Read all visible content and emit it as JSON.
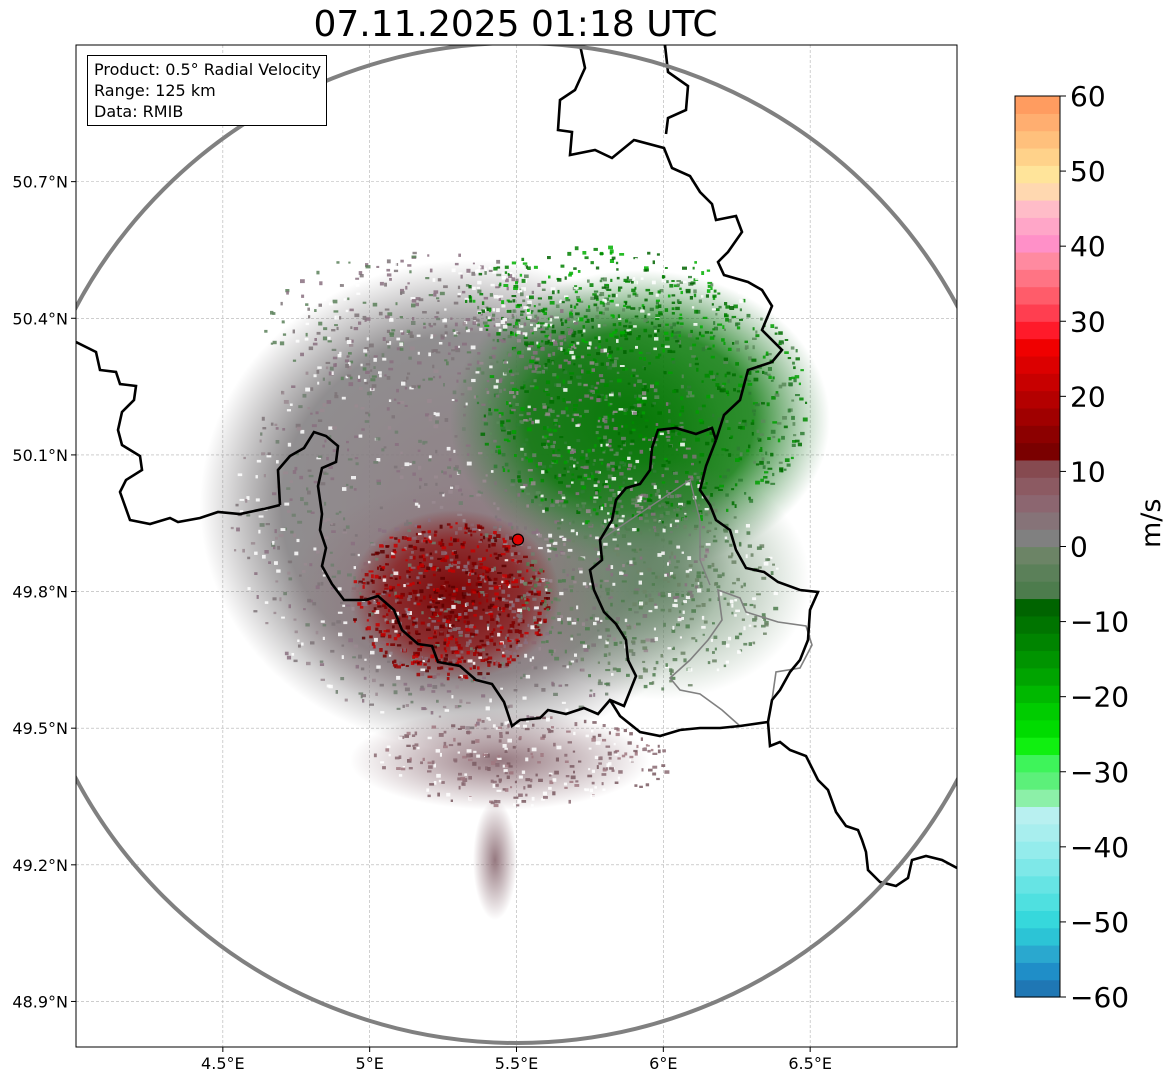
{
  "title": "07.11.2025 01:18 UTC",
  "info": {
    "product": "Product: 0.5° Radial Velocity",
    "range": "Range: 125 km",
    "source": "Data: RMIB"
  },
  "axes": {
    "x_ticks": [
      "4.5°E",
      "5°E",
      "5.5°E",
      "6°E",
      "6.5°E"
    ],
    "x_tick_values": [
      4.5,
      5.0,
      5.5,
      6.0,
      6.5
    ],
    "y_ticks": [
      "50.7°N",
      "50.4°N",
      "50.1°N",
      "49.8°N",
      "49.5°N",
      "49.2°N",
      "48.9°N"
    ],
    "y_tick_values": [
      50.7,
      50.4,
      50.1,
      49.8,
      49.5,
      49.2,
      48.9
    ],
    "lon_range": [
      4.0,
      7.0
    ],
    "lat_range": [
      48.8,
      51.0
    ]
  },
  "radar_site": {
    "lon": 5.505,
    "lat": 49.914,
    "color": "#e00000"
  },
  "colorbar": {
    "label": "m/s",
    "ticks": [
      "60",
      "50",
      "40",
      "30",
      "20",
      "10",
      "0",
      "−10",
      "−20",
      "−30",
      "−40",
      "−50",
      "−60"
    ],
    "tick_values": [
      60,
      50,
      40,
      30,
      20,
      10,
      0,
      -10,
      -20,
      -30,
      -40,
      -50,
      -60
    ],
    "range": [
      -60,
      60
    ],
    "colors": [
      "#1f77b4",
      "#1f8ec8",
      "#2aa8cf",
      "#2cc4d6",
      "#36d8dc",
      "#4fe0e0",
      "#66e4e4",
      "#7ee8e8",
      "#94ecec",
      "#a8eeee",
      "#b8f0f0",
      "#8cf0a8",
      "#5cf07a",
      "#3ef45a",
      "#10f010",
      "#00dc00",
      "#00cc00",
      "#00b800",
      "#00a400",
      "#009400",
      "#008400",
      "#007400",
      "#006400",
      "#4d7c4d",
      "#5b8059",
      "#6c8466",
      "#808080",
      "#867378",
      "#8c6670",
      "#8c5a62",
      "#864a50",
      "#7a0000",
      "#8c0000",
      "#a00000",
      "#b40000",
      "#c80000",
      "#dc0000",
      "#f00000",
      "#ff1a2a",
      "#ff3e50",
      "#ff5c6a",
      "#ff7484",
      "#ff8aa0",
      "#ff90c8",
      "#ffa6c8",
      "#ffbcc8",
      "#ffd8b0",
      "#ffe49a",
      "#ffd28a",
      "#ffc07c",
      "#ffae70",
      "#ff9c60"
    ]
  },
  "style": {
    "ring_color": "#808080",
    "border_color": "#000000",
    "inner_border_color": "#808080",
    "grid_color": "#b0b0b0",
    "approaching_color": "#008000",
    "receding_color": "#8b0000",
    "neutral_color": "#7f7f7f"
  }
}
